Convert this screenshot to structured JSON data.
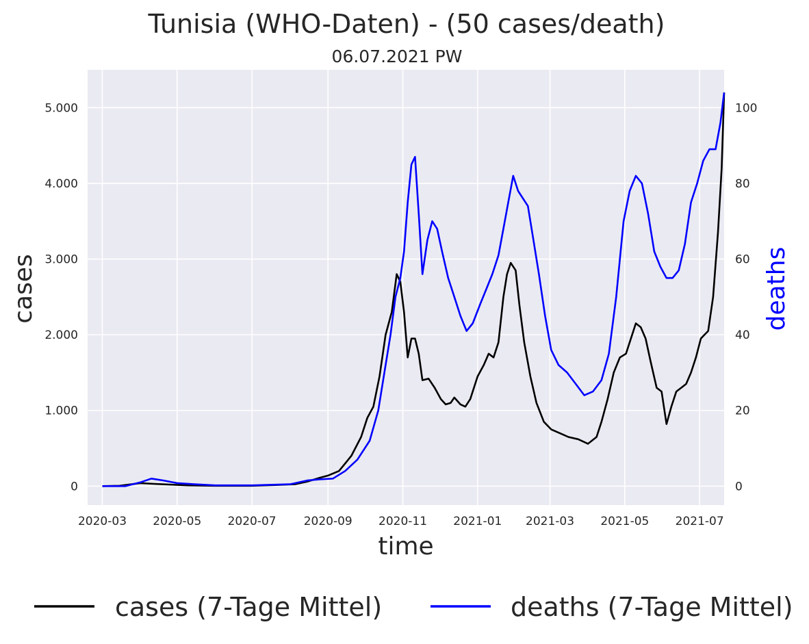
{
  "chart_data": {
    "type": "line",
    "title": "Tunisia (WHO-Daten) - (50 cases/death)",
    "subtitle": "06.07.2021 PW",
    "xlabel": "time",
    "ylabel": "cases",
    "ylabel_right": "deaths",
    "x_range": [
      "2020-02-18",
      "2021-07-21"
    ],
    "ylim": [
      -250,
      5500
    ],
    "ylim_right": [
      -5,
      110
    ],
    "x_ticks": [
      "2020-03-01",
      "2020-05-01",
      "2020-07-01",
      "2020-09-01",
      "2020-11-01",
      "2021-01-01",
      "2021-03-01",
      "2021-05-01",
      "2021-07-01"
    ],
    "x_tick_labels": [
      "2020-03",
      "2020-05",
      "2020-07",
      "2020-09",
      "2020-11",
      "2021-01",
      "2021-03",
      "2021-05",
      "2021-07"
    ],
    "y_ticks": [
      0,
      1000,
      2000,
      3000,
      4000,
      5000
    ],
    "y_tick_labels": [
      "0",
      "1.000",
      "2.000",
      "3.000",
      "4.000",
      "5.000"
    ],
    "y_right_ticks": [
      0,
      20,
      40,
      60,
      80,
      100
    ],
    "y_right_tick_labels": [
      "0",
      "20",
      "40",
      "60",
      "80",
      "100"
    ],
    "grid": true,
    "legend_position": "bottom",
    "colors": {
      "plot_bg": "#eaeaf2",
      "cases": "#000000",
      "deaths": "#0000ff"
    },
    "series": [
      {
        "name": "cases (7-Tage Mittel)",
        "axis": "left",
        "color": "#000000",
        "points": [
          [
            "2020-03-01",
            0
          ],
          [
            "2020-03-15",
            5
          ],
          [
            "2020-04-01",
            40
          ],
          [
            "2020-04-12",
            30
          ],
          [
            "2020-04-25",
            20
          ],
          [
            "2020-05-10",
            10
          ],
          [
            "2020-06-01",
            5
          ],
          [
            "2020-07-01",
            5
          ],
          [
            "2020-07-20",
            15
          ],
          [
            "2020-08-05",
            25
          ],
          [
            "2020-08-15",
            60
          ],
          [
            "2020-08-25",
            110
          ],
          [
            "2020-09-01",
            140
          ],
          [
            "2020-09-10",
            200
          ],
          [
            "2020-09-20",
            400
          ],
          [
            "2020-09-28",
            650
          ],
          [
            "2020-10-03",
            900
          ],
          [
            "2020-10-08",
            1050
          ],
          [
            "2020-10-13",
            1450
          ],
          [
            "2020-10-18",
            2000
          ],
          [
            "2020-10-23",
            2300
          ],
          [
            "2020-10-27",
            2800
          ],
          [
            "2020-10-30",
            2700
          ],
          [
            "2020-11-02",
            2300
          ],
          [
            "2020-11-05",
            1700
          ],
          [
            "2020-11-08",
            1950
          ],
          [
            "2020-11-11",
            1950
          ],
          [
            "2020-11-14",
            1750
          ],
          [
            "2020-11-17",
            1400
          ],
          [
            "2020-11-22",
            1420
          ],
          [
            "2020-11-27",
            1300
          ],
          [
            "2020-12-02",
            1150
          ],
          [
            "2020-12-06",
            1080
          ],
          [
            "2020-12-10",
            1100
          ],
          [
            "2020-12-13",
            1170
          ],
          [
            "2020-12-18",
            1080
          ],
          [
            "2020-12-22",
            1050
          ],
          [
            "2020-12-26",
            1150
          ],
          [
            "2021-01-01",
            1450
          ],
          [
            "2021-01-06",
            1600
          ],
          [
            "2021-01-10",
            1750
          ],
          [
            "2021-01-14",
            1700
          ],
          [
            "2021-01-18",
            1900
          ],
          [
            "2021-01-22",
            2500
          ],
          [
            "2021-01-25",
            2800
          ],
          [
            "2021-01-28",
            2950
          ],
          [
            "2021-02-01",
            2850
          ],
          [
            "2021-02-04",
            2400
          ],
          [
            "2021-02-08",
            1900
          ],
          [
            "2021-02-13",
            1450
          ],
          [
            "2021-02-18",
            1100
          ],
          [
            "2021-02-24",
            850
          ],
          [
            "2021-03-02",
            750
          ],
          [
            "2021-03-09",
            700
          ],
          [
            "2021-03-16",
            650
          ],
          [
            "2021-03-24",
            620
          ],
          [
            "2021-04-01",
            560
          ],
          [
            "2021-04-08",
            650
          ],
          [
            "2021-04-12",
            850
          ],
          [
            "2021-04-17",
            1150
          ],
          [
            "2021-04-22",
            1500
          ],
          [
            "2021-04-27",
            1700
          ],
          [
            "2021-05-02",
            1750
          ],
          [
            "2021-05-06",
            1950
          ],
          [
            "2021-05-10",
            2150
          ],
          [
            "2021-05-14",
            2100
          ],
          [
            "2021-05-18",
            1950
          ],
          [
            "2021-05-22",
            1650
          ],
          [
            "2021-05-27",
            1300
          ],
          [
            "2021-05-31",
            1250
          ],
          [
            "2021-06-04",
            820
          ],
          [
            "2021-06-08",
            1050
          ],
          [
            "2021-06-12",
            1250
          ],
          [
            "2021-06-16",
            1300
          ],
          [
            "2021-06-20",
            1350
          ],
          [
            "2021-06-24",
            1500
          ],
          [
            "2021-06-28",
            1700
          ],
          [
            "2021-07-02",
            1950
          ],
          [
            "2021-07-05",
            2000
          ],
          [
            "2021-07-08",
            2050
          ],
          [
            "2021-07-12",
            2500
          ],
          [
            "2021-07-16",
            3350
          ],
          [
            "2021-07-19",
            4200
          ],
          [
            "2021-07-21",
            5200
          ]
        ]
      },
      {
        "name": "deaths (7-Tage Mittel)",
        "axis": "right",
        "color": "#0000ff",
        "points": [
          [
            "2020-03-01",
            0
          ],
          [
            "2020-03-20",
            0
          ],
          [
            "2020-04-01",
            1
          ],
          [
            "2020-04-10",
            2
          ],
          [
            "2020-04-20",
            1.5
          ],
          [
            "2020-05-01",
            0.8
          ],
          [
            "2020-05-15",
            0.5
          ],
          [
            "2020-06-01",
            0.2
          ],
          [
            "2020-07-01",
            0.2
          ],
          [
            "2020-08-01",
            0.5
          ],
          [
            "2020-08-15",
            1.5
          ],
          [
            "2020-08-25",
            1.8
          ],
          [
            "2020-09-05",
            2
          ],
          [
            "2020-09-15",
            4
          ],
          [
            "2020-09-25",
            7
          ],
          [
            "2020-10-05",
            12
          ],
          [
            "2020-10-12",
            20
          ],
          [
            "2020-10-17",
            30
          ],
          [
            "2020-10-22",
            40
          ],
          [
            "2020-10-26",
            50
          ],
          [
            "2020-10-30",
            55
          ],
          [
            "2020-11-02",
            62
          ],
          [
            "2020-11-05",
            75
          ],
          [
            "2020-11-08",
            85
          ],
          [
            "2020-11-11",
            87
          ],
          [
            "2020-11-14",
            72
          ],
          [
            "2020-11-17",
            56
          ],
          [
            "2020-11-21",
            65
          ],
          [
            "2020-11-25",
            70
          ],
          [
            "2020-11-29",
            68
          ],
          [
            "2020-12-03",
            62
          ],
          [
            "2020-12-08",
            55
          ],
          [
            "2020-12-13",
            50
          ],
          [
            "2020-12-18",
            45
          ],
          [
            "2020-12-23",
            41
          ],
          [
            "2020-12-28",
            43
          ],
          [
            "2021-01-03",
            48
          ],
          [
            "2021-01-08",
            52
          ],
          [
            "2021-01-13",
            56
          ],
          [
            "2021-01-18",
            61
          ],
          [
            "2021-01-22",
            68
          ],
          [
            "2021-01-26",
            75
          ],
          [
            "2021-01-30",
            82
          ],
          [
            "2021-02-03",
            78
          ],
          [
            "2021-02-07",
            76
          ],
          [
            "2021-02-11",
            74
          ],
          [
            "2021-02-15",
            66
          ],
          [
            "2021-02-20",
            56
          ],
          [
            "2021-02-25",
            45
          ],
          [
            "2021-03-02",
            36
          ],
          [
            "2021-03-08",
            32
          ],
          [
            "2021-03-15",
            30
          ],
          [
            "2021-03-22",
            27
          ],
          [
            "2021-03-29",
            24
          ],
          [
            "2021-04-05",
            25
          ],
          [
            "2021-04-12",
            28
          ],
          [
            "2021-04-18",
            35
          ],
          [
            "2021-04-24",
            50
          ],
          [
            "2021-04-30",
            70
          ],
          [
            "2021-05-05",
            78
          ],
          [
            "2021-05-10",
            82
          ],
          [
            "2021-05-15",
            80
          ],
          [
            "2021-05-20",
            72
          ],
          [
            "2021-05-25",
            62
          ],
          [
            "2021-05-30",
            58
          ],
          [
            "2021-06-04",
            55
          ],
          [
            "2021-06-09",
            55
          ],
          [
            "2021-06-14",
            57
          ],
          [
            "2021-06-19",
            64
          ],
          [
            "2021-06-24",
            75
          ],
          [
            "2021-06-29",
            80
          ],
          [
            "2021-07-04",
            86
          ],
          [
            "2021-07-09",
            89
          ],
          [
            "2021-07-14",
            89
          ],
          [
            "2021-07-18",
            96
          ],
          [
            "2021-07-21",
            104
          ]
        ]
      }
    ]
  }
}
